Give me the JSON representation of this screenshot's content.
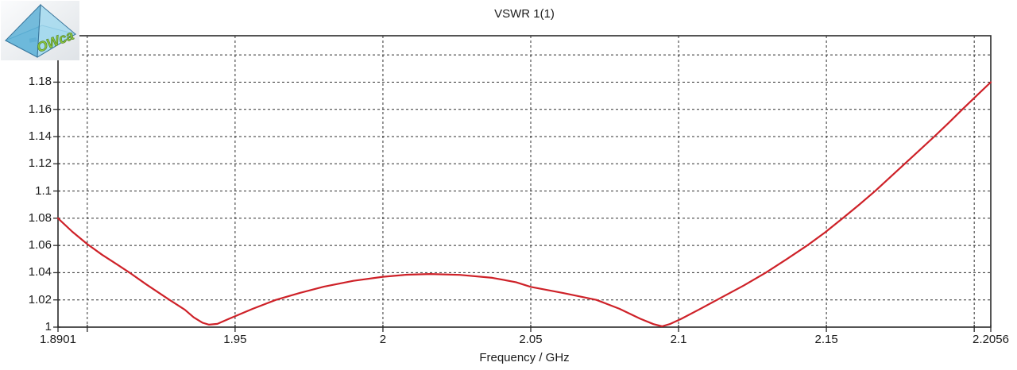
{
  "logo": {
    "text": "OWca"
  },
  "colors": {
    "curve": "#ce2128",
    "grid": "#2f2f2f",
    "text": "#1b1b1b",
    "background": "#ffffff",
    "pyramid_face_light": "#9ed7ee",
    "pyramid_face_dark": "#58aed6",
    "logo_text_green": "#8cc63f"
  },
  "chart_data": {
    "type": "line",
    "title": "VSWR 1(1)",
    "xlabel": "Frequency / GHz",
    "ylabel": "",
    "xlim": [
      1.8901,
      2.2056
    ],
    "ylim": [
      1.0,
      1.2141
    ],
    "grid": "dashed",
    "legend_position": "none",
    "x_gridlines": [
      1.9,
      1.95,
      2.0,
      2.05,
      2.1,
      2.15,
      2.2
    ],
    "y_gridlines": [
      1.02,
      1.04,
      1.06,
      1.08,
      1.1,
      1.12,
      1.14,
      1.16,
      1.18,
      1.2
    ],
    "x_ticks": [
      1.8901,
      1.9,
      1.95,
      2.0,
      2.05,
      2.1,
      2.15,
      2.2,
      2.2056
    ],
    "y_ticks": [
      1.0,
      1.02,
      1.04,
      1.06,
      1.08,
      1.1,
      1.12,
      1.14,
      1.16,
      1.18,
      1.2
    ],
    "x_tick_labels": [
      {
        "value": 1.8901,
        "label": "1.8901"
      },
      {
        "value": 1.95,
        "label": "1.95"
      },
      {
        "value": 2.0,
        "label": "2"
      },
      {
        "value": 2.05,
        "label": "2.05"
      },
      {
        "value": 2.1,
        "label": "2.1"
      },
      {
        "value": 2.15,
        "label": "2.15"
      },
      {
        "value": 2.2056,
        "label": "2.2056"
      }
    ],
    "y_tick_labels": [
      {
        "value": 1.0,
        "label": "1"
      },
      {
        "value": 1.02,
        "label": "1.02"
      },
      {
        "value": 1.04,
        "label": "1.04"
      },
      {
        "value": 1.06,
        "label": "1.06"
      },
      {
        "value": 1.08,
        "label": "1.08"
      },
      {
        "value": 1.1,
        "label": "1.1"
      },
      {
        "value": 1.12,
        "label": "1.12"
      },
      {
        "value": 1.14,
        "label": "1.14"
      },
      {
        "value": 1.16,
        "label": "1.16"
      },
      {
        "value": 1.18,
        "label": "1.18"
      }
    ],
    "series": [
      {
        "name": "VSWR 1(1)",
        "color": "#ce2128",
        "points": [
          [
            1.8901,
            1.08
          ],
          [
            1.895,
            1.07
          ],
          [
            1.9,
            1.061
          ],
          [
            1.905,
            1.0532
          ],
          [
            1.91,
            1.0462
          ],
          [
            1.9143,
            1.04
          ],
          [
            1.92,
            1.0313
          ],
          [
            1.9275,
            1.0205
          ],
          [
            1.933,
            1.0128
          ],
          [
            1.936,
            1.0072
          ],
          [
            1.939,
            1.0032
          ],
          [
            1.9412,
            1.0018
          ],
          [
            1.944,
            1.0024
          ],
          [
            1.948,
            1.0062
          ],
          [
            1.956,
            1.0135
          ],
          [
            1.9638,
            1.02
          ],
          [
            1.972,
            1.0252
          ],
          [
            1.98,
            1.0297
          ],
          [
            1.99,
            1.034
          ],
          [
            2.0,
            1.037
          ],
          [
            2.008,
            1.0385
          ],
          [
            2.016,
            1.039
          ],
          [
            2.026,
            1.0384
          ],
          [
            2.037,
            1.0362
          ],
          [
            2.045,
            1.033
          ],
          [
            2.05,
            1.0296
          ],
          [
            2.061,
            1.025
          ],
          [
            2.0722,
            1.02
          ],
          [
            2.08,
            1.0135
          ],
          [
            2.087,
            1.0062
          ],
          [
            2.0915,
            1.0022
          ],
          [
            2.0944,
            1.0006
          ],
          [
            2.097,
            1.0022
          ],
          [
            2.101,
            1.0062
          ],
          [
            2.107,
            1.013
          ],
          [
            2.113,
            1.02
          ],
          [
            2.122,
            1.0305
          ],
          [
            2.1295,
            1.04
          ],
          [
            2.1365,
            1.0498
          ],
          [
            2.1435,
            1.06
          ],
          [
            2.1495,
            1.0695
          ],
          [
            2.1555,
            1.08
          ],
          [
            2.161,
            1.0898
          ],
          [
            2.1665,
            1.1
          ],
          [
            2.1715,
            1.11
          ],
          [
            2.1765,
            1.12
          ],
          [
            2.1815,
            1.13
          ],
          [
            2.1865,
            1.14
          ],
          [
            2.1913,
            1.15
          ],
          [
            2.196,
            1.16
          ],
          [
            2.2008,
            1.17
          ],
          [
            2.2056,
            1.18
          ]
        ]
      }
    ]
  }
}
